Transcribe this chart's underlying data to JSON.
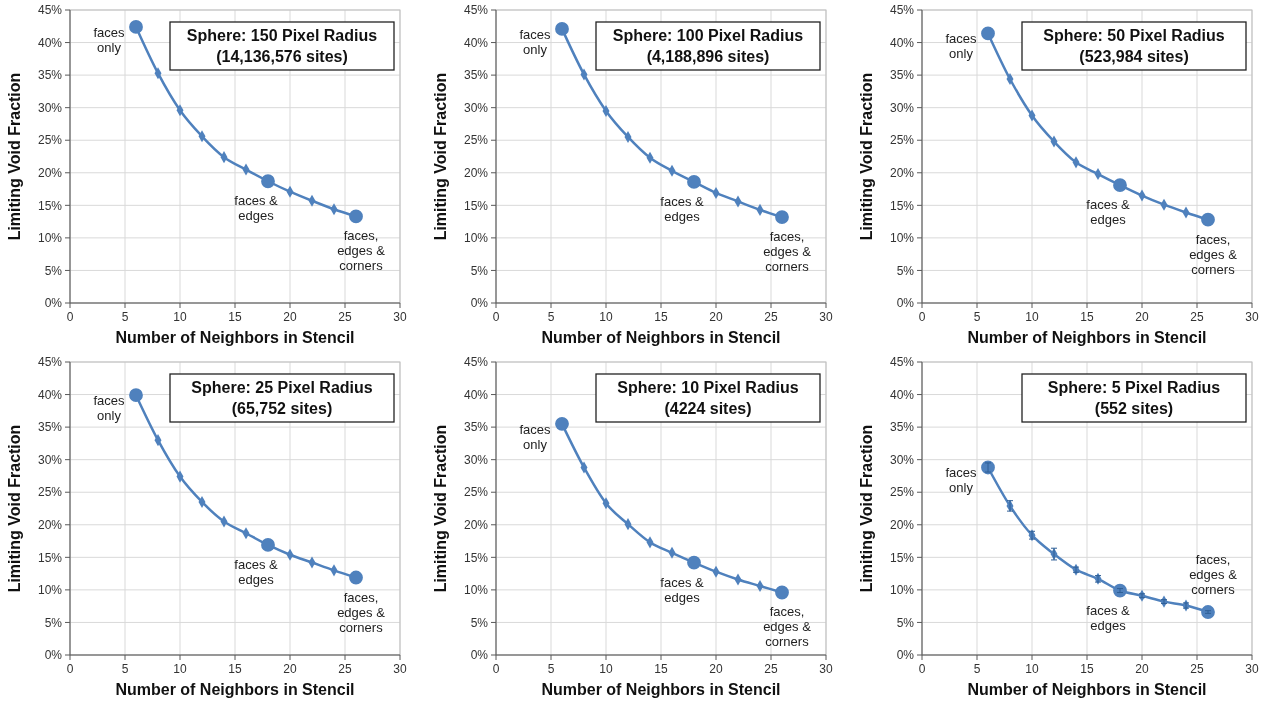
{
  "chart_data": [
    {
      "type": "line",
      "title": "Sphere: 150 Pixel Radius",
      "subtitle": "(14,136,576 sites)",
      "xlabel": "Number of Neighbors in Stencil",
      "ylabel": "Limiting Void Fraction",
      "xlim": [
        0,
        30
      ],
      "xticks": [
        0,
        5,
        10,
        15,
        20,
        25,
        30
      ],
      "ylim": [
        0,
        45
      ],
      "yticks": [
        {
          "value": 0,
          "label": "0%"
        },
        {
          "value": 5,
          "label": "5%"
        },
        {
          "value": 10,
          "label": "10%"
        },
        {
          "value": 15,
          "label": "15%"
        },
        {
          "value": 20,
          "label": "20%"
        },
        {
          "value": 25,
          "label": "25%"
        },
        {
          "value": 30,
          "label": "30%"
        },
        {
          "value": 35,
          "label": "35%"
        },
        {
          "value": 40,
          "label": "40%"
        },
        {
          "value": 45,
          "label": "45%"
        }
      ],
      "grid": true,
      "marker": "diamond",
      "series": [
        {
          "color": "#4f81bd",
          "x": [
            6,
            8,
            10,
            12,
            14,
            16,
            18,
            20,
            22,
            24,
            26
          ],
          "values": [
            42.4,
            35.3,
            29.6,
            25.6,
            22.4,
            20.5,
            18.7,
            17.1,
            15.7,
            14.4,
            13.3
          ]
        },
        {
          "type": "scatter",
          "marker": "circle",
          "color": "#4f81bd",
          "x": [
            6,
            18,
            26
          ],
          "values": [
            42.4,
            18.7,
            13.3
          ]
        }
      ],
      "annotations": [
        {
          "text": "faces only",
          "x": 6,
          "y": 42.4
        },
        {
          "text": "faces & edges",
          "x": 18,
          "y": 18.7
        },
        {
          "text": "faces, edges & corners",
          "x": 26,
          "y": 13.3
        }
      ]
    },
    {
      "type": "line",
      "title": "Sphere: 100 Pixel Radius",
      "subtitle": "(4,188,896 sites)",
      "xlabel": "Number of Neighbors in Stencil",
      "ylabel": "Limiting Void Fraction",
      "xlim": [
        0,
        30
      ],
      "xticks": [
        0,
        5,
        10,
        15,
        20,
        25,
        30
      ],
      "ylim": [
        0,
        45
      ],
      "yticks": [
        {
          "value": 0,
          "label": "0%"
        },
        {
          "value": 5,
          "label": "5%"
        },
        {
          "value": 10,
          "label": "10%"
        },
        {
          "value": 15,
          "label": "15%"
        },
        {
          "value": 20,
          "label": "20%"
        },
        {
          "value": 25,
          "label": "25%"
        },
        {
          "value": 30,
          "label": "30%"
        },
        {
          "value": 35,
          "label": "35%"
        },
        {
          "value": 40,
          "label": "40%"
        },
        {
          "value": 45,
          "label": "45%"
        }
      ],
      "grid": true,
      "marker": "diamond",
      "series": [
        {
          "color": "#4f81bd",
          "x": [
            6,
            8,
            10,
            12,
            14,
            16,
            18,
            20,
            22,
            24,
            26
          ],
          "values": [
            42.1,
            35.1,
            29.5,
            25.5,
            22.3,
            20.3,
            18.6,
            16.9,
            15.6,
            14.3,
            13.2
          ]
        },
        {
          "type": "scatter",
          "marker": "circle",
          "color": "#4f81bd",
          "x": [
            6,
            18,
            26
          ],
          "values": [
            42.1,
            18.6,
            13.2
          ]
        }
      ],
      "annotations": [
        {
          "text": "faces only",
          "x": 6,
          "y": 42.1
        },
        {
          "text": "faces & edges",
          "x": 18,
          "y": 18.6
        },
        {
          "text": "faces, edges & corners",
          "x": 26,
          "y": 13.2
        }
      ]
    },
    {
      "type": "line",
      "title": "Sphere: 50 Pixel Radius",
      "subtitle": "(523,984 sites)",
      "xlabel": "Number of Neighbors in Stencil",
      "ylabel": "Limiting Void Fraction",
      "xlim": [
        0,
        30
      ],
      "xticks": [
        0,
        5,
        10,
        15,
        20,
        25,
        30
      ],
      "ylim": [
        0,
        45
      ],
      "yticks": [
        {
          "value": 0,
          "label": "0%"
        },
        {
          "value": 5,
          "label": "5%"
        },
        {
          "value": 10,
          "label": "10%"
        },
        {
          "value": 15,
          "label": "15%"
        },
        {
          "value": 20,
          "label": "20%"
        },
        {
          "value": 25,
          "label": "25%"
        },
        {
          "value": 30,
          "label": "30%"
        },
        {
          "value": 35,
          "label": "35%"
        },
        {
          "value": 40,
          "label": "40%"
        },
        {
          "value": 45,
          "label": "45%"
        }
      ],
      "grid": true,
      "marker": "diamond",
      "series": [
        {
          "color": "#4f81bd",
          "x": [
            6,
            8,
            10,
            12,
            14,
            16,
            18,
            20,
            22,
            24,
            26
          ],
          "values": [
            41.4,
            34.4,
            28.8,
            24.8,
            21.6,
            19.8,
            18.1,
            16.5,
            15.1,
            13.9,
            12.8
          ]
        },
        {
          "type": "scatter",
          "marker": "circle",
          "color": "#4f81bd",
          "x": [
            6,
            18,
            26
          ],
          "values": [
            41.4,
            18.1,
            12.8
          ]
        }
      ],
      "annotations": [
        {
          "text": "faces only",
          "x": 6,
          "y": 41.4
        },
        {
          "text": "faces & edges",
          "x": 18,
          "y": 18.1
        },
        {
          "text": "faces, edges & corners",
          "x": 26,
          "y": 12.8
        }
      ]
    },
    {
      "type": "line",
      "title": "Sphere: 25 Pixel Radius",
      "subtitle": "(65,752 sites)",
      "xlabel": "Number of Neighbors in Stencil",
      "ylabel": "Limiting Void Fraction",
      "xlim": [
        0,
        30
      ],
      "xticks": [
        0,
        5,
        10,
        15,
        20,
        25,
        30
      ],
      "ylim": [
        0,
        45
      ],
      "yticks": [
        {
          "value": 0,
          "label": "0%"
        },
        {
          "value": 5,
          "label": "5%"
        },
        {
          "value": 10,
          "label": "10%"
        },
        {
          "value": 15,
          "label": "15%"
        },
        {
          "value": 20,
          "label": "20%"
        },
        {
          "value": 25,
          "label": "25%"
        },
        {
          "value": 30,
          "label": "30%"
        },
        {
          "value": 35,
          "label": "35%"
        },
        {
          "value": 40,
          "label": "40%"
        },
        {
          "value": 45,
          "label": "45%"
        }
      ],
      "grid": true,
      "marker": "diamond",
      "series": [
        {
          "color": "#4f81bd",
          "x": [
            6,
            8,
            10,
            12,
            14,
            16,
            18,
            20,
            22,
            24,
            26
          ],
          "values": [
            39.9,
            33.0,
            27.4,
            23.5,
            20.5,
            18.7,
            16.9,
            15.4,
            14.2,
            13.0,
            11.9
          ]
        },
        {
          "type": "scatter",
          "marker": "circle",
          "color": "#4f81bd",
          "x": [
            6,
            18,
            26
          ],
          "values": [
            39.9,
            16.9,
            11.9
          ]
        }
      ],
      "annotations": [
        {
          "text": "faces only",
          "x": 6,
          "y": 39.9
        },
        {
          "text": "faces & edges",
          "x": 18,
          "y": 16.9
        },
        {
          "text": "faces, edges & corners",
          "x": 26,
          "y": 11.9
        }
      ]
    },
    {
      "type": "line",
      "title": "Sphere: 10 Pixel Radius",
      "subtitle": "(4224 sites)",
      "xlabel": "Number of Neighbors in Stencil",
      "ylabel": "Limiting Void Fraction",
      "xlim": [
        0,
        30
      ],
      "xticks": [
        0,
        5,
        10,
        15,
        20,
        25,
        30
      ],
      "ylim": [
        0,
        45
      ],
      "yticks": [
        {
          "value": 0,
          "label": "0%"
        },
        {
          "value": 5,
          "label": "5%"
        },
        {
          "value": 10,
          "label": "10%"
        },
        {
          "value": 15,
          "label": "15%"
        },
        {
          "value": 20,
          "label": "20%"
        },
        {
          "value": 25,
          "label": "25%"
        },
        {
          "value": 30,
          "label": "30%"
        },
        {
          "value": 35,
          "label": "35%"
        },
        {
          "value": 40,
          "label": "40%"
        },
        {
          "value": 45,
          "label": "45%"
        }
      ],
      "grid": true,
      "marker": "diamond",
      "series": [
        {
          "color": "#4f81bd",
          "x": [
            6,
            8,
            10,
            12,
            14,
            16,
            18,
            20,
            22,
            24,
            26
          ],
          "values": [
            35.5,
            28.8,
            23.3,
            20.1,
            17.3,
            15.7,
            14.2,
            12.8,
            11.6,
            10.6,
            9.6
          ]
        },
        {
          "type": "scatter",
          "marker": "circle",
          "color": "#4f81bd",
          "x": [
            6,
            18,
            26
          ],
          "values": [
            35.5,
            14.2,
            9.6
          ]
        }
      ],
      "annotations": [
        {
          "text": "faces only",
          "x": 6,
          "y": 35.5
        },
        {
          "text": "faces & edges",
          "x": 18,
          "y": 14.2
        },
        {
          "text": "faces, edges & corners",
          "x": 26,
          "y": 9.6
        }
      ]
    },
    {
      "type": "line",
      "title": "Sphere: 5 Pixel Radius",
      "subtitle": "(552 sites)",
      "xlabel": "Number of Neighbors in Stencil",
      "ylabel": "Limiting Void Fraction",
      "xlim": [
        0,
        30
      ],
      "xticks": [
        0,
        5,
        10,
        15,
        20,
        25,
        30
      ],
      "ylim": [
        0,
        45
      ],
      "yticks": [
        {
          "value": 0,
          "label": "0%"
        },
        {
          "value": 5,
          "label": "5%"
        },
        {
          "value": 10,
          "label": "10%"
        },
        {
          "value": 15,
          "label": "15%"
        },
        {
          "value": 20,
          "label": "20%"
        },
        {
          "value": 25,
          "label": "25%"
        },
        {
          "value": 30,
          "label": "30%"
        },
        {
          "value": 35,
          "label": "35%"
        },
        {
          "value": 40,
          "label": "40%"
        },
        {
          "value": 45,
          "label": "45%"
        }
      ],
      "grid": true,
      "marker": "diamond",
      "series": [
        {
          "color": "#4f81bd",
          "x": [
            6,
            8,
            10,
            12,
            14,
            16,
            18,
            20,
            22,
            24,
            26
          ],
          "values": [
            28.8,
            22.9,
            18.4,
            15.5,
            13.1,
            11.7,
            9.9,
            9.1,
            8.2,
            7.6,
            6.6
          ],
          "errors": [
            0.7,
            0.8,
            0.6,
            0.9,
            0.4,
            0.5,
            0.3,
            0.3,
            0.3,
            0.4,
            0.2
          ]
        },
        {
          "type": "scatter",
          "marker": "circle",
          "color": "#4f81bd",
          "x": [
            6,
            18,
            26
          ],
          "values": [
            28.8,
            9.9,
            6.6
          ]
        }
      ],
      "annotations": [
        {
          "text": "faces only",
          "x": 6,
          "y": 28.8
        },
        {
          "text": "faces & edges",
          "x": 18,
          "y": 9.9
        },
        {
          "text": "faces, edges & corners",
          "x": 26,
          "y": 6.6
        }
      ]
    }
  ]
}
